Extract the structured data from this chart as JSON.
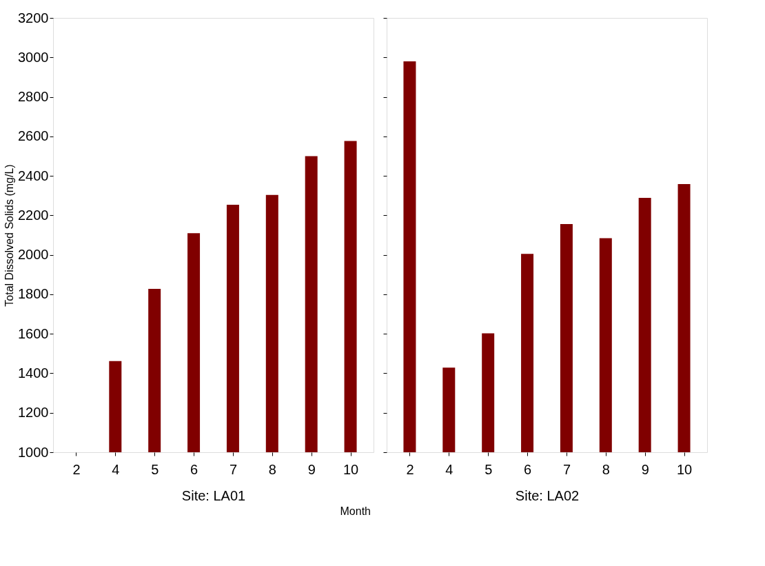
{
  "chart_data": [
    {
      "type": "bar",
      "title": "Site: LA01",
      "ylabel": "Total Dissolved Solids (mg/L)",
      "annotations": [
        "Month"
      ],
      "categories": [
        "2",
        "4",
        "5",
        "6",
        "7",
        "8",
        "9",
        "10"
      ],
      "series": [
        {
          "color": "#800000",
          "values": [
            null,
            1462,
            1828,
            2110,
            2254,
            2303,
            2500,
            2577
          ]
        }
      ],
      "ylim": [
        1000,
        3200
      ],
      "yticks": [
        1000,
        1200,
        1400,
        1600,
        1800,
        2000,
        2200,
        2400,
        2600,
        2800,
        3000,
        3200
      ],
      "grid": false
    },
    {
      "type": "bar",
      "title": "Site: LA02",
      "categories": [
        "2",
        "4",
        "5",
        "6",
        "7",
        "8",
        "9",
        "10"
      ],
      "series": [
        {
          "color": "#800000",
          "values": [
            2980,
            1429,
            1602,
            2005,
            2156,
            2084,
            2289,
            2358
          ]
        }
      ],
      "ylim": [
        1000,
        3200
      ],
      "yticks": [
        1000,
        1200,
        1400,
        1600,
        1800,
        2000,
        2200,
        2400,
        2600,
        2800,
        3000,
        3200
      ],
      "grid": false,
      "tick_labels": "x"
    }
  ]
}
